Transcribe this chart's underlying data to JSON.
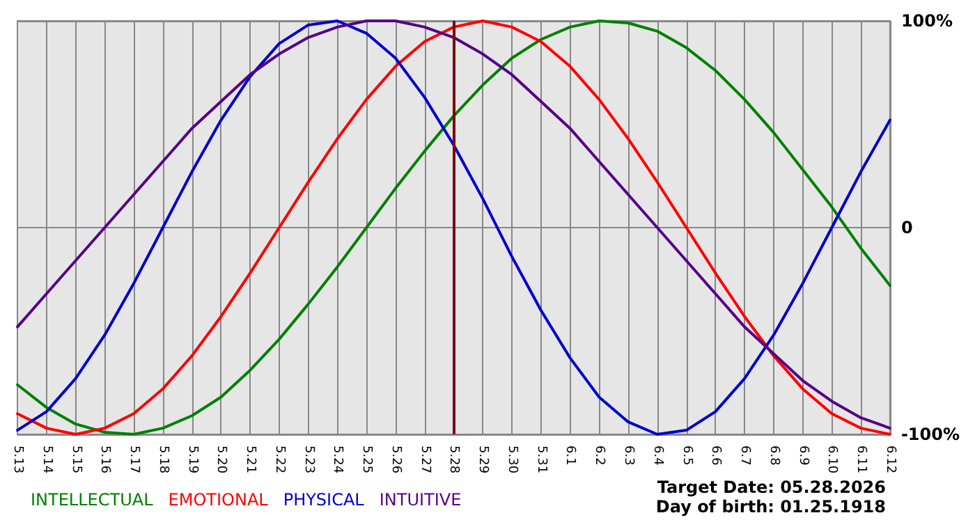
{
  "chart_data": {
    "type": "line",
    "categories": [
      "5.13",
      "5.14",
      "5.15",
      "5.16",
      "5.17",
      "5.18",
      "5.19",
      "5.20",
      "5.21",
      "5.22",
      "5.23",
      "5.24",
      "5.25",
      "5.26",
      "5.27",
      "5.28",
      "5.29",
      "5.30",
      "5.31",
      "6.1",
      "6.2",
      "6.3",
      "6.4",
      "6.5",
      "6.6",
      "6.7",
      "6.8",
      "6.9",
      "6.10",
      "6.11",
      "6.12"
    ],
    "series": [
      {
        "name": "INTELLECTUAL",
        "color": "#008000",
        "values": [
          -76,
          -87,
          -95,
          -99,
          -100,
          -97,
          -91,
          -82,
          -69,
          -54,
          -37,
          -19,
          0,
          19,
          37,
          54,
          69,
          82,
          91,
          97,
          100,
          99,
          95,
          87,
          76,
          62,
          46,
          28,
          10,
          -10,
          -28
        ]
      },
      {
        "name": "EMOTIONAL",
        "color": "#ff0000",
        "values": [
          -90,
          -97,
          -100,
          -97,
          -90,
          -78,
          -62,
          -43,
          -22,
          0,
          22,
          43,
          62,
          78,
          90,
          97,
          100,
          97,
          90,
          78,
          62,
          43,
          22,
          0,
          -22,
          -43,
          -62,
          -78,
          -90,
          -97,
          -100
        ]
      },
      {
        "name": "PHYSICAL",
        "color": "#0000cc",
        "values": [
          -98,
          -89,
          -73,
          -52,
          -27,
          0,
          27,
          52,
          73,
          89,
          98,
          100,
          94,
          82,
          63,
          40,
          14,
          -14,
          -40,
          -63,
          -82,
          -94,
          -100,
          -98,
          -89,
          -73,
          -52,
          -27,
          0,
          27,
          52
        ]
      },
      {
        "name": "INTUITIVE",
        "color": "#550088",
        "values": [
          -48,
          -32,
          -16,
          0,
          16,
          32,
          48,
          61,
          74,
          84,
          92,
          97,
          100,
          100,
          97,
          92,
          84,
          74,
          61,
          48,
          32,
          16,
          0,
          -16,
          -32,
          -48,
          -61,
          -74,
          -84,
          -92,
          -97
        ]
      }
    ],
    "ylim": [
      -100,
      100
    ],
    "yticks": [
      {
        "value": -100,
        "label": "-100%"
      },
      0,
      {
        "value": 100,
        "label": "100%"
      }
    ],
    "ref_lines": [
      {
        "axis": "x",
        "value": "5.28",
        "color": "#800000"
      }
    ],
    "annotations": [
      "Target Date: 05.28.2026",
      "Day of birth: 01.25.1918"
    ],
    "grid": true,
    "legend": "bottom left",
    "marker": "none",
    "line_style": "solid"
  }
}
